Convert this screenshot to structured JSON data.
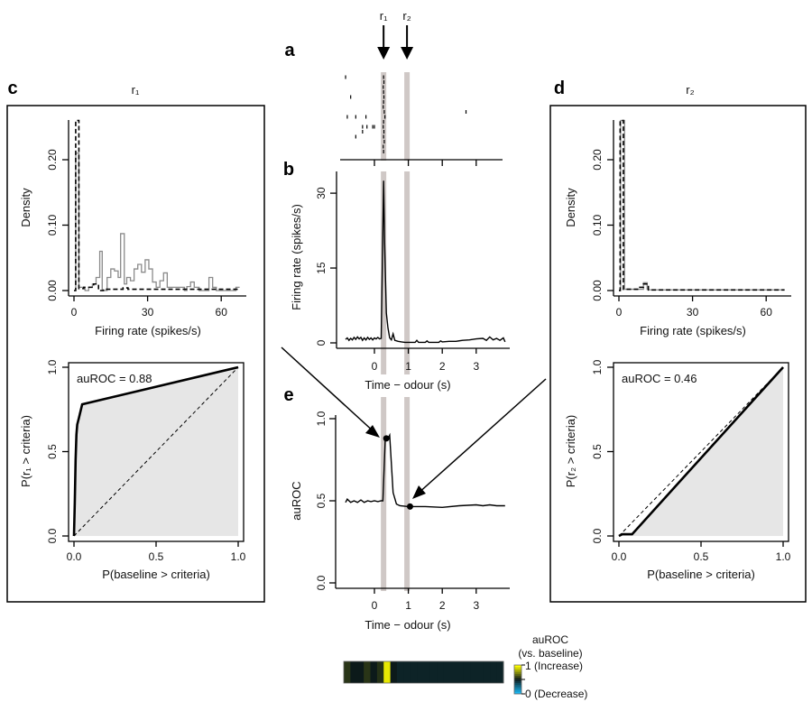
{
  "labels": {
    "panel_a": "a",
    "panel_b": "b",
    "panel_c": "c",
    "panel_d": "d",
    "panel_e": "e",
    "r1": "r₁",
    "r2": "r₂",
    "density": "Density",
    "firing_rate": "Firing rate (spikes/s)",
    "time_odour": "Time − odour (s)",
    "auroc": "auROC",
    "p_baseline": "P(baseline > criteria)",
    "p_r1": "P(r₁ > criteria)",
    "p_r2": "P(r₂ > criteria)",
    "auroc_c": "auROC = 0.88",
    "auroc_d": "auROC = 0.46",
    "cbar_title1": "auROC",
    "cbar_title2": "(vs. baseline)",
    "cbar_high": "1 (Increase)",
    "cbar_low": "0 (Decrease)"
  },
  "colors": {
    "highlight": "#cfc8c6",
    "roc_fill": "#e6e6e6",
    "hist_r": "#8a8a8a",
    "cmap_low": "#19b5f0",
    "cmap_mid": "#0c1a1a",
    "cmap_high": "#ffff00"
  },
  "chart_data": [
    {
      "id": "a",
      "type": "scatter",
      "xlim": [
        -0.9,
        3.9
      ],
      "xticks": [
        0,
        1,
        2,
        3
      ],
      "highlight_times": [
        0.27,
        0.96
      ],
      "spikes": [
        [
          0.27,
          1
        ],
        [
          0.28,
          2
        ],
        [
          0.26,
          3
        ],
        [
          0.27,
          4
        ],
        [
          0.28,
          5
        ],
        [
          0.27,
          6
        ],
        [
          0.26,
          7
        ],
        [
          0.29,
          8
        ],
        [
          0.31,
          9
        ],
        [
          0.27,
          10
        ],
        [
          0.26,
          11
        ],
        [
          0.28,
          12
        ],
        [
          0.27,
          13
        ],
        [
          0.29,
          14
        ],
        [
          0.26,
          15
        ],
        [
          0.27,
          16
        ],
        [
          -0.85,
          1
        ],
        [
          -0.7,
          5
        ],
        [
          -0.8,
          9
        ],
        [
          -0.55,
          9
        ],
        [
          -0.25,
          9
        ],
        [
          -0.35,
          11
        ],
        [
          -0.22,
          11
        ],
        [
          -0.05,
          11
        ],
        [
          0.0,
          11
        ],
        [
          -0.35,
          12
        ],
        [
          -0.55,
          13
        ],
        [
          2.7,
          8
        ]
      ]
    },
    {
      "id": "b",
      "type": "line",
      "xlabel": "Time − odour (s)",
      "ylabel": "Firing rate (spikes/s)",
      "xlim": [
        -0.9,
        3.9
      ],
      "ylim": [
        0,
        33
      ],
      "xticks": [
        0,
        1,
        2,
        3
      ],
      "yticks": [
        0,
        15,
        30
      ],
      "points": [
        [
          -0.85,
          0.7
        ],
        [
          -0.8,
          1.0
        ],
        [
          -0.75,
          0.5
        ],
        [
          -0.7,
          0.9
        ],
        [
          -0.65,
          0.6
        ],
        [
          -0.6,
          1.1
        ],
        [
          -0.55,
          0.7
        ],
        [
          -0.5,
          1.2
        ],
        [
          -0.45,
          0.8
        ],
        [
          -0.4,
          1.1
        ],
        [
          -0.35,
          0.5
        ],
        [
          -0.3,
          1.0
        ],
        [
          -0.25,
          0.6
        ],
        [
          -0.2,
          1.1
        ],
        [
          -0.15,
          0.7
        ],
        [
          -0.1,
          1.0
        ],
        [
          -0.05,
          0.6
        ],
        [
          0,
          1.0
        ],
        [
          0.05,
          0.8
        ],
        [
          0.1,
          1.1
        ],
        [
          0.15,
          0.8
        ],
        [
          0.2,
          0.9
        ],
        [
          0.27,
          32.5
        ],
        [
          0.3,
          20
        ],
        [
          0.35,
          6
        ],
        [
          0.4,
          3
        ],
        [
          0.45,
          1
        ],
        [
          0.5,
          0.6
        ],
        [
          0.55,
          1.8
        ],
        [
          0.6,
          0.5
        ],
        [
          0.7,
          0.3
        ],
        [
          0.8,
          0.2
        ],
        [
          0.9,
          0.1
        ],
        [
          1.0,
          0.1
        ],
        [
          1.2,
          0.1
        ],
        [
          1.25,
          0.5
        ],
        [
          1.3,
          0.1
        ],
        [
          1.5,
          0.1
        ],
        [
          1.55,
          0.4
        ],
        [
          1.6,
          0.1
        ],
        [
          1.9,
          0.1
        ],
        [
          1.95,
          0.4
        ],
        [
          2.0,
          0.2
        ],
        [
          2.2,
          0.3
        ],
        [
          2.4,
          0.3
        ],
        [
          2.6,
          0.5
        ],
        [
          2.8,
          0.6
        ],
        [
          3.0,
          0.8
        ],
        [
          3.2,
          0.9
        ],
        [
          3.3,
          0.5
        ],
        [
          3.4,
          1.2
        ],
        [
          3.5,
          0.6
        ],
        [
          3.6,
          0.9
        ],
        [
          3.7,
          0.5
        ],
        [
          3.8,
          1.0
        ],
        [
          3.85,
          0.2
        ]
      ]
    },
    {
      "id": "c_hist",
      "type": "bar",
      "title": "r₁",
      "xlabel": "Firing rate (spikes/s)",
      "ylabel": "Density",
      "xlim": [
        0,
        67.5
      ],
      "ylim": [
        0,
        0.26
      ],
      "xticks": [
        0,
        30,
        60
      ],
      "yticks": [
        0.0,
        0.1,
        0.2
      ],
      "ytick_labels": [
        "0.00",
        "0.10",
        "0.20"
      ],
      "series": [
        {
          "style": "solid-grey",
          "edges": [
            0,
            0.7,
            2,
            3,
            4.5,
            6,
            7.5,
            9,
            10.5,
            11.5,
            13.5,
            15,
            16.5,
            18,
            19,
            20.5,
            21.5,
            23,
            24.5,
            26,
            27.5,
            29,
            30.5,
            32,
            33.5,
            35,
            36.5,
            38,
            45,
            46,
            47.5,
            49,
            51,
            55,
            56.5,
            58,
            66,
            67.5
          ],
          "density": [
            0,
            0.21,
            0.005,
            0.005,
            0,
            0.005,
            0.01,
            0.02,
            0.06,
            0,
            0.02,
            0.033,
            0.03,
            0.02,
            0.087,
            0.01,
            0.02,
            0.015,
            0.033,
            0.04,
            0.028,
            0.047,
            0.033,
            0.013,
            0.005,
            0.015,
            0.027,
            0.005,
            0,
            0.006,
            0.013,
            0.005,
            0,
            0.02,
            0.005,
            0,
            0.005
          ]
        },
        {
          "style": "dashed-black",
          "edges": [
            0,
            0.7,
            2,
            4,
            8,
            10,
            12,
            20,
            22,
            67.5
          ],
          "density": [
            0,
            0.26,
            0.003,
            0.005,
            0.01,
            0,
            0.002,
            0.004,
            0.002
          ]
        }
      ]
    },
    {
      "id": "c_roc",
      "type": "line",
      "xlabel": "P(baseline > criteria)",
      "ylabel": "P(r₁ > criteria)",
      "xlim": [
        0,
        1
      ],
      "ylim": [
        0,
        1
      ],
      "xticks": [
        0,
        0.5,
        1
      ],
      "xtick_labels": [
        "0.0",
        "0.5",
        "1.0"
      ],
      "yticks": [
        0,
        0.5,
        1
      ],
      "ytick_labels": [
        "0.0",
        "0.5",
        "1.0"
      ],
      "auroc": 0.88,
      "points": [
        [
          0,
          0
        ],
        [
          0.005,
          0.2
        ],
        [
          0.01,
          0.45
        ],
        [
          0.015,
          0.6
        ],
        [
          0.02,
          0.66
        ],
        [
          0.03,
          0.7
        ],
        [
          0.04,
          0.74
        ],
        [
          0.05,
          0.78
        ],
        [
          1,
          1
        ]
      ]
    },
    {
      "id": "d_hist",
      "type": "bar",
      "title": "r₂",
      "xlabel": "Firing rate (spikes/s)",
      "ylabel": "Density",
      "xlim": [
        0,
        67.5
      ],
      "ylim": [
        0,
        0.26
      ],
      "xticks": [
        0,
        30,
        60
      ],
      "yticks": [
        0.0,
        0.1,
        0.2
      ],
      "ytick_labels": [
        "0.00",
        "0.10",
        "0.20"
      ],
      "series": [
        {
          "style": "solid-grey",
          "edges": [
            0,
            0.7,
            2.3,
            10,
            11.5,
            12,
            67.5
          ],
          "density": [
            0,
            0.26,
            0.002,
            0.012,
            0.002,
            0.001
          ]
        },
        {
          "style": "dashed-black",
          "edges": [
            0,
            0.5,
            1.8,
            8,
            10,
            12,
            67.5
          ],
          "density": [
            0,
            0.26,
            0.002,
            0.005,
            0.01,
            0.001
          ]
        }
      ]
    },
    {
      "id": "d_roc",
      "type": "line",
      "xlabel": "P(baseline > criteria)",
      "ylabel": "P(r₂ > criteria)",
      "xlim": [
        0,
        1
      ],
      "ylim": [
        0,
        1
      ],
      "xticks": [
        0,
        0.5,
        1
      ],
      "xtick_labels": [
        "0.0",
        "0.5",
        "1.0"
      ],
      "yticks": [
        0,
        0.5,
        1
      ],
      "ytick_labels": [
        "0.0",
        "0.5",
        "1.0"
      ],
      "auroc": 0.46,
      "points": [
        [
          0,
          0
        ],
        [
          0.02,
          0.01
        ],
        [
          0.08,
          0.01
        ],
        [
          1,
          1
        ]
      ]
    },
    {
      "id": "e",
      "type": "line",
      "xlabel": "Time − odour (s)",
      "ylabel": "auROC",
      "xlim": [
        -0.9,
        3.9
      ],
      "ylim": [
        0,
        1
      ],
      "xticks": [
        0,
        1,
        2,
        3
      ],
      "yticks": [
        0,
        0.5,
        1
      ],
      "ytick_labels": [
        "0.0",
        "0.5",
        "1.0"
      ],
      "points": [
        [
          -0.85,
          0.49
        ],
        [
          -0.8,
          0.51
        ],
        [
          -0.7,
          0.49
        ],
        [
          -0.6,
          0.5
        ],
        [
          -0.5,
          0.49
        ],
        [
          -0.4,
          0.505
        ],
        [
          -0.3,
          0.49
        ],
        [
          -0.2,
          0.5
        ],
        [
          -0.1,
          0.495
        ],
        [
          0,
          0.5
        ],
        [
          0.1,
          0.495
        ],
        [
          0.2,
          0.5
        ],
        [
          0.25,
          0.5
        ],
        [
          0.32,
          0.88
        ],
        [
          0.4,
          0.88
        ],
        [
          0.45,
          0.9
        ],
        [
          0.55,
          0.55
        ],
        [
          0.65,
          0.48
        ],
        [
          0.75,
          0.47
        ],
        [
          1.0,
          0.465
        ],
        [
          1.5,
          0.465
        ],
        [
          2.0,
          0.46
        ],
        [
          2.5,
          0.47
        ],
        [
          3.0,
          0.475
        ],
        [
          3.2,
          0.47
        ],
        [
          3.4,
          0.475
        ],
        [
          3.6,
          0.47
        ],
        [
          3.85,
          0.47
        ]
      ],
      "markers": [
        [
          0.35,
          0.88
        ],
        [
          1.05,
          0.465
        ]
      ]
    },
    {
      "id": "heatmap",
      "type": "heatmap",
      "xlim": [
        -0.9,
        3.9
      ],
      "clim": [
        0,
        1
      ],
      "values": [
        0.56,
        0.5,
        0.5,
        0.56,
        0.5,
        0.55,
        0.95,
        0.5,
        0.47,
        0.47,
        0.47,
        0.47,
        0.47,
        0.47,
        0.47,
        0.47,
        0.47,
        0.47,
        0.47,
        0.47,
        0.47,
        0.47,
        0.47,
        0.47
      ]
    }
  ]
}
